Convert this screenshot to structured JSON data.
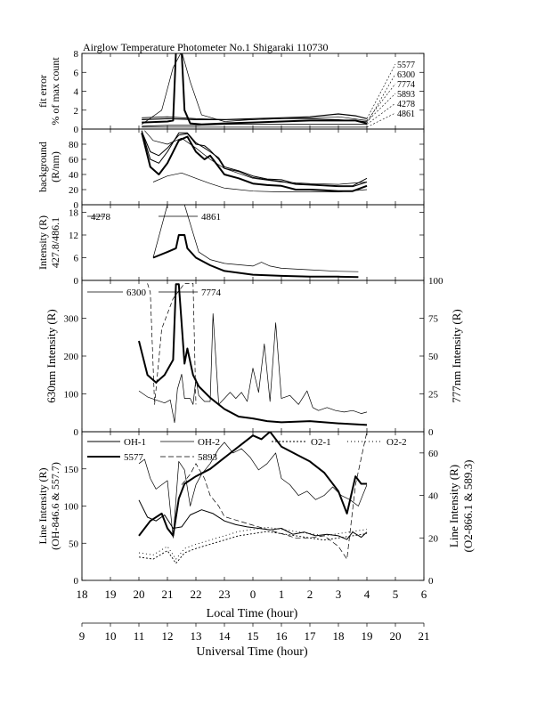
{
  "figure": {
    "title": "Airglow Temperature Photometer No.1   Shigaraki   110730",
    "x_axis_local": {
      "label": "Local Time (hour)",
      "range": [
        18,
        30
      ],
      "ticks": [
        18,
        19,
        20,
        21,
        22,
        23,
        24,
        25,
        26,
        27,
        28,
        29,
        30
      ],
      "tick_labels": [
        "18",
        "19",
        "20",
        "21",
        "22",
        "23",
        "0",
        "1",
        "2",
        "3",
        "4",
        "5",
        "6"
      ]
    },
    "x_axis_ut": {
      "label": "Universal Time (hour)",
      "range": [
        9,
        21
      ],
      "ticks": [
        9,
        10,
        11,
        12,
        13,
        14,
        15,
        16,
        17,
        18,
        19,
        20,
        21
      ],
      "tick_labels": [
        "9",
        "10",
        "11",
        "12",
        "13",
        "14",
        "15",
        "16",
        "17",
        "18",
        "19",
        "20",
        "21"
      ]
    }
  },
  "chart_data": [
    {
      "id": "fit",
      "type": "line",
      "ylabel": [
        "fit error",
        "% of max count"
      ],
      "ylim": [
        0,
        8
      ],
      "yticks": [
        0,
        2,
        4,
        6,
        8
      ],
      "labels_right": [
        "5577",
        "6300",
        "7774",
        "5893",
        "4278",
        "4861"
      ],
      "series": [
        {
          "name": "5577",
          "width": 1.2,
          "dash": "",
          "x": [
            20.1,
            21.0,
            22.0,
            23.0,
            24.0,
            25.0,
            26.0,
            27.0,
            27.6,
            28.0
          ],
          "y": [
            1.0,
            1.1,
            1.0,
            1.0,
            1.1,
            1.2,
            1.3,
            1.6,
            1.4,
            1.1
          ]
        },
        {
          "name": "6300",
          "width": 2.0,
          "dash": "",
          "x": [
            20.1,
            21.0,
            21.2,
            21.3,
            21.5,
            21.6,
            21.8,
            22.2,
            23.0,
            24.0,
            25.0,
            26.0,
            27.0,
            27.6,
            28.0
          ],
          "y": [
            0.7,
            0.8,
            0.9,
            8.2,
            8.2,
            2.0,
            0.6,
            0.5,
            0.6,
            0.7,
            0.8,
            0.9,
            0.9,
            0.9,
            0.6
          ]
        },
        {
          "name": "7774",
          "width": 0.7,
          "dash": "",
          "x": [
            20.1,
            20.8,
            21.2,
            21.5,
            21.8,
            22.2,
            23.0,
            24.0,
            25.0,
            26.0,
            27.0,
            28.0
          ],
          "y": [
            0.5,
            2.0,
            6.5,
            8.2,
            5.0,
            1.5,
            0.8,
            1.0,
            1.1,
            1.2,
            1.3,
            0.9
          ]
        },
        {
          "name": "5893",
          "width": 0.8,
          "dash": "",
          "x": [
            20.1,
            21.0,
            22.0,
            23.0,
            24.0,
            25.0,
            26.0,
            27.0,
            28.0
          ],
          "y": [
            1.2,
            1.3,
            1.1,
            1.0,
            1.0,
            1.1,
            1.1,
            1.0,
            0.8
          ]
        },
        {
          "name": "4278",
          "width": 0.8,
          "dash": "",
          "x": [
            20.1,
            21.0,
            22.0,
            23.0,
            24.0,
            25.0,
            26.0,
            27.0,
            28.0
          ],
          "y": [
            0.3,
            0.4,
            0.4,
            0.5,
            0.5,
            0.5,
            0.5,
            0.5,
            0.5
          ]
        },
        {
          "name": "4861",
          "width": 0.7,
          "dash": "",
          "x": [
            20.1,
            21.0,
            22.0,
            23.0,
            24.0,
            25.0,
            26.0,
            27.0,
            28.0
          ],
          "y": [
            0.2,
            0.2,
            0.2,
            0.2,
            0.2,
            0.2,
            0.2,
            0.2,
            0.2
          ]
        }
      ]
    },
    {
      "id": "bg",
      "type": "line",
      "ylabel": [
        "background",
        "(R/nm)"
      ],
      "ylim": [
        0,
        100
      ],
      "yticks": [
        0,
        20,
        40,
        60,
        80
      ],
      "series": [
        {
          "name": "",
          "width": 2.0,
          "dash": "",
          "x": [
            20.1,
            20.4,
            20.7,
            21.0,
            21.4,
            21.7,
            22.0,
            22.3,
            22.5,
            22.8,
            23.0,
            23.5,
            24.0,
            24.5,
            25.0,
            25.5,
            26.0,
            26.5,
            27.0,
            27.5,
            28.0
          ],
          "y": [
            95,
            50,
            40,
            55,
            85,
            90,
            70,
            60,
            65,
            50,
            40,
            35,
            28,
            26,
            25,
            20,
            20,
            19,
            18,
            18,
            25
          ]
        },
        {
          "name": "",
          "width": 1.0,
          "dash": "",
          "x": [
            20.1,
            20.4,
            20.7,
            21.0,
            21.4,
            21.7,
            22.0,
            22.3,
            22.5,
            22.8,
            23.0,
            23.5,
            24.0,
            24.5,
            25.0,
            25.5,
            26.0,
            26.5,
            27.0,
            27.5,
            28.0
          ],
          "y": [
            98,
            60,
            55,
            70,
            95,
            95,
            82,
            75,
            70,
            62,
            50,
            45,
            38,
            34,
            33,
            28,
            27,
            26,
            25,
            25,
            35
          ]
        },
        {
          "name": "",
          "width": 1.0,
          "dash": "",
          "x": [
            20.1,
            20.4,
            20.7,
            21.0,
            21.4,
            21.7,
            22.0,
            22.3,
            22.5,
            22.8,
            23.0,
            23.5,
            24.0,
            24.5,
            25.0,
            25.5,
            26.0,
            26.5,
            27.0,
            27.5,
            28.0
          ],
          "y": [
            97,
            70,
            65,
            75,
            92,
            94,
            80,
            78,
            72,
            60,
            48,
            44,
            36,
            33,
            31,
            27,
            26,
            25,
            24,
            24,
            30
          ]
        },
        {
          "name": "",
          "width": 0.7,
          "dash": "",
          "x": [
            20.5,
            21.0,
            21.5,
            22.0,
            22.5,
            23.0,
            24.0,
            25.0,
            26.0,
            27.0,
            28.0
          ],
          "y": [
            30,
            38,
            42,
            35,
            28,
            22,
            18,
            17,
            17,
            17,
            20
          ]
        },
        {
          "name": "",
          "width": 0.7,
          "dash": "",
          "x": [
            20.2,
            20.5,
            21.0,
            21.5,
            22.0,
            22.5,
            23.0,
            24.0,
            25.0,
            26.0,
            27.0,
            28.0
          ],
          "y": [
            98,
            85,
            80,
            88,
            75,
            60,
            48,
            35,
            30,
            28,
            27,
            30
          ]
        }
      ]
    },
    {
      "id": "blue",
      "type": "line",
      "ylabel": [
        "Intensity (R)",
        "427.8/486.1"
      ],
      "ylim": [
        0,
        20
      ],
      "yticks": [
        0,
        6,
        12,
        18
      ],
      "legend": [
        "4278",
        "4861"
      ],
      "series": [
        {
          "name": "4278",
          "width": 2.0,
          "dash": "",
          "x": [
            20.5,
            21.0,
            21.3,
            21.4,
            21.6,
            21.7,
            22.0,
            22.5,
            23.0,
            24.0,
            25.0,
            26.0,
            27.0,
            27.7
          ],
          "y": [
            6,
            7.5,
            8.5,
            12,
            12,
            8.5,
            6,
            4,
            2.5,
            1.5,
            1.2,
            1.0,
            1.0,
            0.9
          ]
        },
        {
          "name": "4861",
          "width": 0.7,
          "dash": "",
          "x": [
            20.5,
            21.0,
            21.6,
            22.1,
            22.5,
            23.0,
            24.0,
            24.3,
            24.6,
            25.0,
            26.0,
            27.0,
            27.7
          ],
          "y": [
            6,
            20,
            20,
            7.5,
            5.5,
            4.5,
            3.8,
            4.8,
            3.8,
            3.2,
            2.8,
            2.4,
            2.3
          ]
        }
      ]
    },
    {
      "id": "red",
      "type": "line",
      "ylabel": [
        "630nm Intensity (R)"
      ],
      "ylim": [
        0,
        400
      ],
      "yticks": [
        0,
        100,
        200,
        300
      ],
      "ylabel_right": "777nm Intensity (R)",
      "ylim_right": [
        0,
        100
      ],
      "yticks_right": [
        0,
        25,
        50,
        75,
        100
      ],
      "legend": [
        "6300",
        "7774"
      ],
      "series": [
        {
          "name": "6300",
          "width": 2.0,
          "dash": "",
          "axis": "left",
          "x": [
            20.0,
            20.3,
            20.6,
            20.9,
            21.2,
            21.3,
            21.4,
            21.6,
            21.7,
            21.9,
            22.1,
            22.5,
            23.0,
            23.5,
            24.0,
            24.5,
            25.0,
            26.0,
            27.0,
            28.0
          ],
          "y": [
            240,
            150,
            130,
            150,
            190,
            390,
            390,
            180,
            220,
            150,
            120,
            90,
            60,
            40,
            35,
            28,
            25,
            28,
            22,
            18
          ]
        },
        {
          "name": "7774",
          "width": 0.7,
          "dash": "",
          "axis": "right",
          "x": [
            20.0,
            20.3,
            20.6,
            20.9,
            21.1,
            21.25,
            21.35,
            21.5,
            21.6,
            21.8,
            21.9,
            22.0,
            22.1,
            22.3,
            22.5,
            22.6,
            22.8,
            23.0,
            23.2,
            23.4,
            23.6,
            23.8,
            24.0,
            24.2,
            24.4,
            24.6,
            24.8,
            25.0,
            25.3,
            25.6,
            25.9,
            26.1,
            26.3,
            26.6,
            26.9,
            27.2,
            27.5,
            27.8,
            28.0
          ],
          "y": [
            27,
            23,
            21,
            19,
            21,
            6,
            28,
            38,
            22,
            22,
            18,
            35,
            24,
            20,
            20,
            78,
            18,
            22,
            26,
            22,
            26,
            20,
            42,
            26,
            58,
            20,
            72,
            22,
            24,
            18,
            27,
            16,
            14,
            16,
            14,
            13,
            14,
            12,
            13
          ]
        }
      ],
      "dashed_overlay": {
        "width": 0.7,
        "dash": "5,3",
        "axis": "right",
        "x": [
          20.3,
          20.4,
          20.55,
          20.8,
          21.2,
          21.6,
          21.9,
          22.0
        ],
        "y": [
          98,
          92,
          18,
          68,
          88,
          98,
          98,
          18
        ]
      }
    },
    {
      "id": "oh",
      "type": "line",
      "ylabel": [
        "Line Intensity (R)",
        "(OH-846.6 & 557.7)"
      ],
      "ylim": [
        0,
        200
      ],
      "yticks": [
        0,
        50,
        100,
        150
      ],
      "ylabel_right": [
        "Line Intensity (R)",
        "(O2-866.1 & 589.3)"
      ],
      "ylim_right": [
        0,
        70
      ],
      "yticks_right": [
        0,
        20,
        40,
        60
      ],
      "legend": [
        "OH-1",
        "OH-2",
        "O2-1",
        "O2-2",
        "5577",
        "5893"
      ],
      "series": [
        {
          "name": "OH-1",
          "width": 1.0,
          "dash": "",
          "axis": "left",
          "x": [
            20.0,
            20.3,
            20.6,
            20.9,
            21.2,
            21.5,
            21.8,
            22.2,
            22.6,
            23.0,
            23.4,
            23.8,
            24.2,
            24.6,
            25.0,
            25.4,
            25.8,
            26.2,
            26.6,
            27.0,
            27.3,
            27.5,
            27.8,
            28.0
          ],
          "y": [
            108,
            85,
            80,
            88,
            70,
            72,
            88,
            95,
            90,
            80,
            75,
            72,
            70,
            68,
            70,
            62,
            65,
            60,
            62,
            60,
            55,
            65,
            58,
            65
          ]
        },
        {
          "name": "OH-2",
          "width": 0.7,
          "dash": "",
          "axis": "right",
          "x": [
            20.0,
            20.2,
            20.4,
            20.6,
            20.8,
            21.0,
            21.2,
            21.4,
            21.6,
            21.8,
            22.0,
            22.2,
            22.5,
            22.8,
            23.0,
            23.3,
            23.6,
            23.9,
            24.2,
            24.5,
            24.8,
            25.0,
            25.3,
            25.6,
            25.9,
            26.2,
            26.5,
            26.8,
            27.1,
            27.4,
            27.7,
            28.0
          ],
          "y": [
            55,
            57,
            48,
            43,
            45,
            47,
            20,
            56,
            52,
            35,
            45,
            50,
            55,
            62,
            65,
            60,
            62,
            58,
            52,
            55,
            60,
            48,
            45,
            40,
            42,
            38,
            40,
            44,
            40,
            38,
            35,
            45
          ]
        },
        {
          "name": "O2-1",
          "width": 0.9,
          "dash": "2,2",
          "axis": "right",
          "x": [
            20.0,
            20.5,
            21.0,
            21.3,
            21.6,
            22.0,
            22.5,
            23.0,
            23.5,
            24.0,
            24.5,
            25.0,
            25.5,
            26.0,
            26.5,
            27.0,
            27.5,
            28.0
          ],
          "y": [
            11,
            10,
            14,
            8,
            13,
            15,
            17,
            19,
            21,
            22,
            23,
            22,
            21,
            20,
            19,
            20,
            21,
            22
          ]
        },
        {
          "name": "O2-2",
          "width": 0.9,
          "dash": "1,3",
          "axis": "right",
          "x": [
            20.0,
            20.5,
            21.0,
            21.3,
            21.6,
            22.0,
            22.5,
            23.0,
            23.5,
            24.0,
            24.5,
            25.0,
            25.5,
            26.0,
            26.5,
            27.0,
            27.5,
            28.0
          ],
          "y": [
            13,
            12,
            16,
            10,
            15,
            17,
            19,
            21,
            23,
            24,
            25,
            24,
            23,
            22,
            21,
            22,
            23,
            24
          ]
        },
        {
          "name": "5577",
          "width": 2.0,
          "dash": "",
          "axis": "left",
          "x": [
            20.0,
            20.4,
            20.8,
            21.0,
            21.2,
            21.4,
            21.6,
            22.0,
            22.5,
            23.0,
            23.5,
            24.0,
            24.3,
            24.6,
            25.0,
            25.5,
            26.0,
            26.5,
            27.0,
            27.3,
            27.6,
            27.8,
            28.0
          ],
          "y": [
            60,
            80,
            90,
            70,
            60,
            110,
            130,
            140,
            150,
            165,
            180,
            195,
            190,
            200,
            180,
            170,
            160,
            145,
            120,
            90,
            140,
            130,
            130
          ]
        },
        {
          "name": "5893",
          "width": 0.7,
          "dash": "6,3",
          "axis": "right",
          "x": [
            21.5,
            21.8,
            22.0,
            22.3,
            22.5,
            22.8,
            23.0,
            23.5,
            24.0,
            24.5,
            25.0,
            25.5,
            26.0,
            26.5,
            27.0,
            27.3,
            27.6,
            28.0
          ],
          "y": [
            45,
            50,
            55,
            48,
            40,
            35,
            30,
            28,
            26,
            24,
            22,
            20,
            20,
            21,
            16,
            10,
            45,
            70
          ]
        }
      ]
    }
  ]
}
